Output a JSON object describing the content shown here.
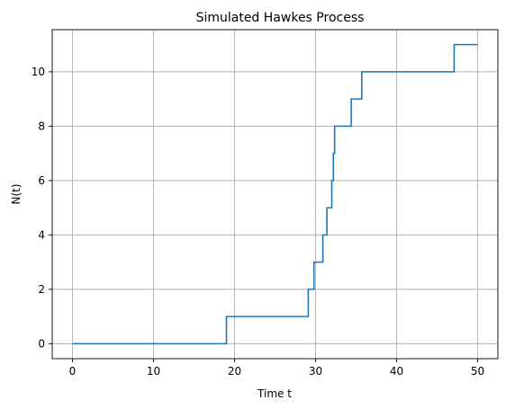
{
  "chart_data": {
    "type": "line",
    "step": "post",
    "title": "Simulated Hawkes Process",
    "xlabel": "Time t",
    "ylabel": "N(t)",
    "xlim": [
      -2.5,
      52.5
    ],
    "ylim": [
      -0.55,
      11.55
    ],
    "xticks": [
      0,
      10,
      20,
      30,
      40,
      50
    ],
    "yticks": [
      0,
      2,
      4,
      6,
      8,
      10
    ],
    "grid": true,
    "series": [
      {
        "color": "#1f77b4",
        "x": [
          0,
          19.0,
          29.1,
          29.8,
          30.9,
          31.4,
          32.0,
          32.2,
          32.35,
          34.4,
          35.7,
          47.1,
          50
        ],
        "y": [
          0,
          1,
          2,
          3,
          4,
          5,
          6,
          7,
          8,
          9,
          10,
          11,
          11
        ]
      }
    ]
  }
}
